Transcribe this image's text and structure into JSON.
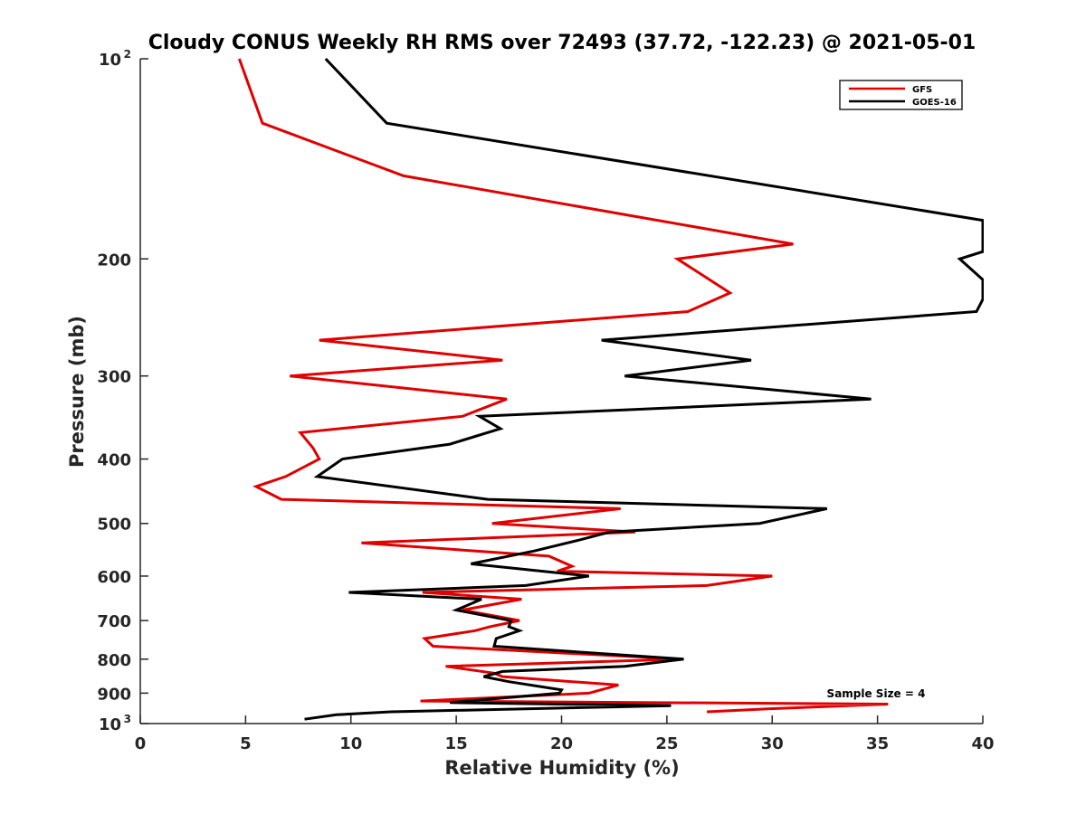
{
  "chart_data": {
    "type": "line",
    "title": "Cloudy CONUS Weekly RH RMS over 72493 (37.72, -122.23) @ 2021-05-01",
    "xlabel": "Relative Humidity (%)",
    "ylabel": "Pressure (mb)",
    "xlim": [
      0,
      40
    ],
    "ylim": [
      100,
      1000
    ],
    "y_scale": "log",
    "y_reversed": true,
    "grid": false,
    "legend_position": "top-right",
    "x_ticks": [
      "0",
      "5",
      "10",
      "15",
      "20",
      "25",
      "30",
      "35",
      "40"
    ],
    "y_ticks": [
      {
        "value": 100,
        "label": "10",
        "sup": "2"
      },
      {
        "value": 200,
        "label": "200",
        "sup": ""
      },
      {
        "value": 300,
        "label": "300",
        "sup": ""
      },
      {
        "value": 400,
        "label": "400",
        "sup": ""
      },
      {
        "value": 500,
        "label": "500",
        "sup": ""
      },
      {
        "value": 600,
        "label": "600",
        "sup": ""
      },
      {
        "value": 700,
        "label": "700",
        "sup": ""
      },
      {
        "value": 800,
        "label": "800",
        "sup": ""
      },
      {
        "value": 900,
        "label": "900",
        "sup": ""
      },
      {
        "value": 1000,
        "label": "10",
        "sup": "3"
      }
    ],
    "annotations": [
      "Sample Size = 4"
    ],
    "series": [
      {
        "name": "GFS",
        "color": "#e00000",
        "points": [
          [
            4.7,
            100
          ],
          [
            5.8,
            125
          ],
          [
            12.5,
            150
          ],
          [
            31.0,
            190
          ],
          [
            25.5,
            200
          ],
          [
            28.0,
            225
          ],
          [
            26.0,
            240
          ],
          [
            8.5,
            265
          ],
          [
            17.2,
            284
          ],
          [
            7.1,
            300
          ],
          [
            17.4,
            325
          ],
          [
            15.3,
            345
          ],
          [
            7.6,
            365
          ],
          [
            8.2,
            385
          ],
          [
            8.5,
            400
          ],
          [
            6.9,
            425
          ],
          [
            5.5,
            440
          ],
          [
            6.7,
            460
          ],
          [
            22.8,
            475
          ],
          [
            16.7,
            500
          ],
          [
            23.5,
            515
          ],
          [
            10.5,
            535
          ],
          [
            19.4,
            560
          ],
          [
            20.5,
            580
          ],
          [
            19.8,
            590
          ],
          [
            30.0,
            600
          ],
          [
            26.9,
            620
          ],
          [
            13.4,
            635
          ],
          [
            18.1,
            650
          ],
          [
            15.3,
            675
          ],
          [
            18.0,
            700
          ],
          [
            16.6,
            715
          ],
          [
            15.9,
            725
          ],
          [
            13.5,
            745
          ],
          [
            13.9,
            765
          ],
          [
            25.7,
            800
          ],
          [
            14.5,
            820
          ],
          [
            16.8,
            840
          ],
          [
            17.2,
            850
          ],
          [
            22.7,
            875
          ],
          [
            21.3,
            900
          ],
          [
            13.3,
            925
          ],
          [
            35.5,
            935
          ],
          [
            29.9,
            950
          ],
          [
            26.9,
            960
          ]
        ]
      },
      {
        "name": "GOES-16",
        "color": "#000000",
        "points": [
          [
            8.8,
            100
          ],
          [
            11.7,
            125
          ],
          [
            40.0,
            175
          ],
          [
            40.0,
            195
          ],
          [
            38.9,
            200
          ],
          [
            40.0,
            215
          ],
          [
            40.0,
            230
          ],
          [
            39.7,
            240
          ],
          [
            21.9,
            265
          ],
          [
            29.0,
            284
          ],
          [
            23.0,
            300
          ],
          [
            34.7,
            325
          ],
          [
            16.1,
            345
          ],
          [
            17.1,
            360
          ],
          [
            14.7,
            380
          ],
          [
            9.6,
            400
          ],
          [
            8.4,
            425
          ],
          [
            16.5,
            460
          ],
          [
            32.6,
            475
          ],
          [
            29.4,
            500
          ],
          [
            22.3,
            515
          ],
          [
            20.8,
            530
          ],
          [
            18.7,
            550
          ],
          [
            15.7,
            575
          ],
          [
            21.3,
            600
          ],
          [
            18.3,
            620
          ],
          [
            9.9,
            635
          ],
          [
            16.2,
            650
          ],
          [
            15.0,
            675
          ],
          [
            17.6,
            700
          ],
          [
            17.5,
            715
          ],
          [
            18.0,
            725
          ],
          [
            16.9,
            745
          ],
          [
            16.8,
            765
          ],
          [
            25.8,
            800
          ],
          [
            23.0,
            820
          ],
          [
            17.2,
            835
          ],
          [
            16.3,
            850
          ],
          [
            17.5,
            865
          ],
          [
            20.0,
            890
          ],
          [
            19.9,
            900
          ],
          [
            14.7,
            930
          ],
          [
            25.2,
            940
          ],
          [
            11.9,
            960
          ],
          [
            9.3,
            970
          ],
          [
            7.8,
            985
          ]
        ]
      }
    ]
  }
}
